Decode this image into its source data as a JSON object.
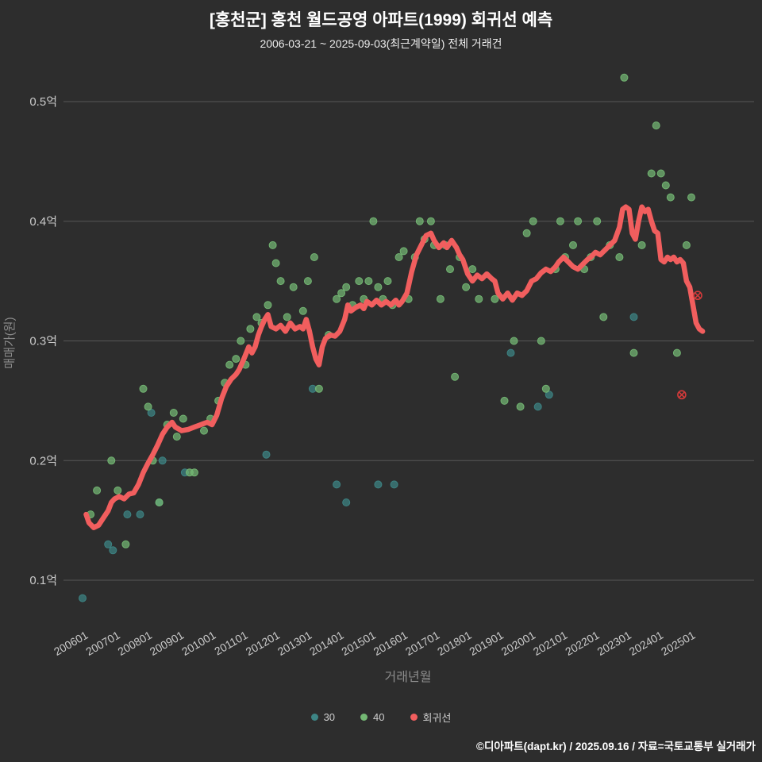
{
  "footer": "©디아파트(dapt.kr) / 2025.09.16 / 자료=국토교통부 실거래가",
  "colors": {
    "background": "#2d2d2d",
    "grid": "#565656",
    "tick_label": "#c9c9c9",
    "axis_title": "#8c8c8c",
    "title": "#ffffff",
    "subtitle": "#ededed",
    "legend_text": "#cfcfcf",
    "footer_text": "#ffffff"
  },
  "chart_data": {
    "type": "scatter",
    "title": "[홍천군] 홍천 월드공영 아파트(1999) 회귀선 예측",
    "subtitle": "2006-03-21 ~ 2025-09-03(최근계약일) 전체 거래건",
    "xlabel": "거래년월",
    "ylabel": "매매가(원)",
    "xlim": [
      2005.5,
      2027.1
    ],
    "ylim": [
      0.06,
      0.54
    ],
    "grid": "horizontal",
    "legend_position": "bottom-center",
    "yticks": [
      {
        "v": 0.1,
        "label": "0.1억"
      },
      {
        "v": 0.2,
        "label": "0.2억"
      },
      {
        "v": 0.3,
        "label": "0.3억"
      },
      {
        "v": 0.4,
        "label": "0.4억"
      },
      {
        "v": 0.5,
        "label": "0.5억"
      }
    ],
    "xticks": [
      {
        "v": 2006,
        "label": "200601"
      },
      {
        "v": 2007,
        "label": "200701"
      },
      {
        "v": 2008,
        "label": "200801"
      },
      {
        "v": 2009,
        "label": "200901"
      },
      {
        "v": 2010,
        "label": "201001"
      },
      {
        "v": 2011,
        "label": "201101"
      },
      {
        "v": 2012,
        "label": "201201"
      },
      {
        "v": 2013,
        "label": "201301"
      },
      {
        "v": 2014,
        "label": "201401"
      },
      {
        "v": 2015,
        "label": "201501"
      },
      {
        "v": 2016,
        "label": "201601"
      },
      {
        "v": 2017,
        "label": "201701"
      },
      {
        "v": 2018,
        "label": "201801"
      },
      {
        "v": 2019,
        "label": "201901"
      },
      {
        "v": 2020,
        "label": "202001"
      },
      {
        "v": 2021,
        "label": "202101"
      },
      {
        "v": 2022,
        "label": "202201"
      },
      {
        "v": 2023,
        "label": "202301"
      },
      {
        "v": 2024,
        "label": "202401"
      },
      {
        "v": 2025,
        "label": "202501"
      }
    ],
    "series": [
      {
        "name": "30",
        "type": "scatter",
        "color": "#3d8585",
        "points": [
          [
            2006.1,
            0.085
          ],
          [
            2006.9,
            0.13
          ],
          [
            2007.05,
            0.125
          ],
          [
            2007.5,
            0.155
          ],
          [
            2007.9,
            0.155
          ],
          [
            2008.25,
            0.24
          ],
          [
            2008.5,
            0.165
          ],
          [
            2008.6,
            0.2
          ],
          [
            2009.3,
            0.19
          ],
          [
            2011.85,
            0.205
          ],
          [
            2013.3,
            0.26
          ],
          [
            2014.05,
            0.18
          ],
          [
            2014.35,
            0.165
          ],
          [
            2015.35,
            0.18
          ],
          [
            2015.85,
            0.18
          ],
          [
            2019.5,
            0.29
          ],
          [
            2020.35,
            0.245
          ],
          [
            2020.7,
            0.255
          ],
          [
            2023.35,
            0.32
          ]
        ]
      },
      {
        "name": "40",
        "type": "scatter",
        "color": "#74b874",
        "points": [
          [
            2006.35,
            0.155
          ],
          [
            2006.55,
            0.175
          ],
          [
            2007.0,
            0.2
          ],
          [
            2007.2,
            0.175
          ],
          [
            2007.45,
            0.13
          ],
          [
            2008.0,
            0.26
          ],
          [
            2008.15,
            0.245
          ],
          [
            2008.3,
            0.2
          ],
          [
            2008.5,
            0.165
          ],
          [
            2008.75,
            0.23
          ],
          [
            2008.95,
            0.24
          ],
          [
            2009.05,
            0.22
          ],
          [
            2009.25,
            0.235
          ],
          [
            2009.45,
            0.19
          ],
          [
            2009.6,
            0.19
          ],
          [
            2009.9,
            0.225
          ],
          [
            2010.1,
            0.235
          ],
          [
            2010.35,
            0.25
          ],
          [
            2010.55,
            0.265
          ],
          [
            2010.7,
            0.28
          ],
          [
            2010.9,
            0.285
          ],
          [
            2011.05,
            0.3
          ],
          [
            2011.2,
            0.28
          ],
          [
            2011.35,
            0.31
          ],
          [
            2011.55,
            0.32
          ],
          [
            2011.7,
            0.315
          ],
          [
            2011.9,
            0.33
          ],
          [
            2012.05,
            0.38
          ],
          [
            2012.15,
            0.365
          ],
          [
            2012.3,
            0.35
          ],
          [
            2012.5,
            0.32
          ],
          [
            2012.7,
            0.345
          ],
          [
            2013.0,
            0.325
          ],
          [
            2013.15,
            0.35
          ],
          [
            2013.35,
            0.37
          ],
          [
            2013.5,
            0.26
          ],
          [
            2013.8,
            0.305
          ],
          [
            2014.05,
            0.335
          ],
          [
            2014.2,
            0.34
          ],
          [
            2014.35,
            0.345
          ],
          [
            2014.55,
            0.33
          ],
          [
            2014.75,
            0.35
          ],
          [
            2014.9,
            0.335
          ],
          [
            2015.05,
            0.35
          ],
          [
            2015.2,
            0.4
          ],
          [
            2015.35,
            0.345
          ],
          [
            2015.5,
            0.335
          ],
          [
            2015.65,
            0.35
          ],
          [
            2015.8,
            0.33
          ],
          [
            2016.0,
            0.37
          ],
          [
            2016.15,
            0.375
          ],
          [
            2016.3,
            0.335
          ],
          [
            2016.5,
            0.37
          ],
          [
            2016.65,
            0.4
          ],
          [
            2016.8,
            0.385
          ],
          [
            2017.0,
            0.4
          ],
          [
            2017.1,
            0.38
          ],
          [
            2017.3,
            0.335
          ],
          [
            2017.45,
            0.38
          ],
          [
            2017.6,
            0.36
          ],
          [
            2017.75,
            0.27
          ],
          [
            2017.9,
            0.37
          ],
          [
            2018.1,
            0.345
          ],
          [
            2018.3,
            0.36
          ],
          [
            2018.5,
            0.335
          ],
          [
            2019.0,
            0.335
          ],
          [
            2019.3,
            0.25
          ],
          [
            2019.6,
            0.3
          ],
          [
            2019.8,
            0.245
          ],
          [
            2020.0,
            0.39
          ],
          [
            2020.2,
            0.4
          ],
          [
            2020.45,
            0.3
          ],
          [
            2020.6,
            0.26
          ],
          [
            2020.9,
            0.36
          ],
          [
            2021.05,
            0.4
          ],
          [
            2021.2,
            0.37
          ],
          [
            2021.45,
            0.38
          ],
          [
            2021.6,
            0.4
          ],
          [
            2021.8,
            0.36
          ],
          [
            2022.0,
            0.37
          ],
          [
            2022.2,
            0.4
          ],
          [
            2022.4,
            0.32
          ],
          [
            2022.6,
            0.38
          ],
          [
            2022.9,
            0.37
          ],
          [
            2023.05,
            0.52
          ],
          [
            2023.35,
            0.29
          ],
          [
            2023.6,
            0.38
          ],
          [
            2023.9,
            0.44
          ],
          [
            2024.05,
            0.48
          ],
          [
            2024.2,
            0.44
          ],
          [
            2024.35,
            0.43
          ],
          [
            2024.5,
            0.42
          ],
          [
            2024.7,
            0.29
          ],
          [
            2025.0,
            0.38
          ],
          [
            2025.15,
            0.42
          ]
        ]
      },
      {
        "name": "회귀선",
        "type": "line",
        "color": "#f15e5e",
        "points": [
          [
            2006.21,
            0.155
          ],
          [
            2006.3,
            0.148
          ],
          [
            2006.45,
            0.144
          ],
          [
            2006.6,
            0.146
          ],
          [
            2006.75,
            0.152
          ],
          [
            2006.9,
            0.158
          ],
          [
            2007.0,
            0.165
          ],
          [
            2007.1,
            0.168
          ],
          [
            2007.25,
            0.17
          ],
          [
            2007.4,
            0.168
          ],
          [
            2007.55,
            0.172
          ],
          [
            2007.7,
            0.173
          ],
          [
            2007.85,
            0.18
          ],
          [
            2008.0,
            0.19
          ],
          [
            2008.15,
            0.198
          ],
          [
            2008.3,
            0.205
          ],
          [
            2008.45,
            0.213
          ],
          [
            2008.6,
            0.222
          ],
          [
            2008.75,
            0.228
          ],
          [
            2008.9,
            0.232
          ],
          [
            2009.0,
            0.228
          ],
          [
            2009.2,
            0.225
          ],
          [
            2009.4,
            0.226
          ],
          [
            2009.6,
            0.228
          ],
          [
            2009.8,
            0.23
          ],
          [
            2010.0,
            0.232
          ],
          [
            2010.15,
            0.23
          ],
          [
            2010.3,
            0.238
          ],
          [
            2010.45,
            0.252
          ],
          [
            2010.6,
            0.262
          ],
          [
            2010.75,
            0.268
          ],
          [
            2010.9,
            0.272
          ],
          [
            2011.0,
            0.276
          ],
          [
            2011.15,
            0.285
          ],
          [
            2011.3,
            0.295
          ],
          [
            2011.4,
            0.29
          ],
          [
            2011.5,
            0.295
          ],
          [
            2011.6,
            0.305
          ],
          [
            2011.7,
            0.312
          ],
          [
            2011.8,
            0.318
          ],
          [
            2011.9,
            0.322
          ],
          [
            2012.0,
            0.312
          ],
          [
            2012.15,
            0.31
          ],
          [
            2012.3,
            0.313
          ],
          [
            2012.45,
            0.308
          ],
          [
            2012.6,
            0.315
          ],
          [
            2012.75,
            0.31
          ],
          [
            2012.9,
            0.312
          ],
          [
            2013.0,
            0.31
          ],
          [
            2013.1,
            0.318
          ],
          [
            2013.2,
            0.308
          ],
          [
            2013.3,
            0.295
          ],
          [
            2013.4,
            0.285
          ],
          [
            2013.5,
            0.28
          ],
          [
            2013.6,
            0.295
          ],
          [
            2013.7,
            0.302
          ],
          [
            2013.85,
            0.305
          ],
          [
            2014.0,
            0.304
          ],
          [
            2014.15,
            0.308
          ],
          [
            2014.3,
            0.318
          ],
          [
            2014.4,
            0.33
          ],
          [
            2014.5,
            0.325
          ],
          [
            2014.65,
            0.328
          ],
          [
            2014.8,
            0.33
          ],
          [
            2014.9,
            0.327
          ],
          [
            2015.0,
            0.333
          ],
          [
            2015.15,
            0.33
          ],
          [
            2015.3,
            0.334
          ],
          [
            2015.45,
            0.33
          ],
          [
            2015.6,
            0.333
          ],
          [
            2015.75,
            0.33
          ],
          [
            2015.9,
            0.334
          ],
          [
            2016.0,
            0.33
          ],
          [
            2016.1,
            0.333
          ],
          [
            2016.25,
            0.34
          ],
          [
            2016.4,
            0.358
          ],
          [
            2016.55,
            0.372
          ],
          [
            2016.7,
            0.38
          ],
          [
            2016.85,
            0.388
          ],
          [
            2017.0,
            0.39
          ],
          [
            2017.1,
            0.384
          ],
          [
            2017.25,
            0.378
          ],
          [
            2017.4,
            0.382
          ],
          [
            2017.5,
            0.378
          ],
          [
            2017.65,
            0.384
          ],
          [
            2017.8,
            0.378
          ],
          [
            2017.9,
            0.372
          ],
          [
            2018.0,
            0.368
          ],
          [
            2018.15,
            0.356
          ],
          [
            2018.3,
            0.35
          ],
          [
            2018.45,
            0.355
          ],
          [
            2018.6,
            0.352
          ],
          [
            2018.75,
            0.356
          ],
          [
            2018.9,
            0.352
          ],
          [
            2019.0,
            0.35
          ],
          [
            2019.1,
            0.34
          ],
          [
            2019.25,
            0.335
          ],
          [
            2019.4,
            0.34
          ],
          [
            2019.55,
            0.334
          ],
          [
            2019.7,
            0.34
          ],
          [
            2019.85,
            0.338
          ],
          [
            2020.0,
            0.342
          ],
          [
            2020.15,
            0.35
          ],
          [
            2020.3,
            0.352
          ],
          [
            2020.45,
            0.357
          ],
          [
            2020.6,
            0.36
          ],
          [
            2020.75,
            0.358
          ],
          [
            2020.9,
            0.362
          ],
          [
            2021.0,
            0.366
          ],
          [
            2021.15,
            0.37
          ],
          [
            2021.3,
            0.366
          ],
          [
            2021.45,
            0.362
          ],
          [
            2021.6,
            0.36
          ],
          [
            2021.75,
            0.364
          ],
          [
            2021.9,
            0.368
          ],
          [
            2022.0,
            0.37
          ],
          [
            2022.15,
            0.374
          ],
          [
            2022.3,
            0.372
          ],
          [
            2022.45,
            0.376
          ],
          [
            2022.6,
            0.38
          ],
          [
            2022.75,
            0.384
          ],
          [
            2022.9,
            0.395
          ],
          [
            2023.0,
            0.41
          ],
          [
            2023.1,
            0.412
          ],
          [
            2023.2,
            0.41
          ],
          [
            2023.3,
            0.39
          ],
          [
            2023.4,
            0.385
          ],
          [
            2023.5,
            0.4
          ],
          [
            2023.6,
            0.412
          ],
          [
            2023.7,
            0.408
          ],
          [
            2023.8,
            0.41
          ],
          [
            2023.9,
            0.4
          ],
          [
            2024.0,
            0.392
          ],
          [
            2024.1,
            0.39
          ],
          [
            2024.2,
            0.368
          ],
          [
            2024.3,
            0.366
          ],
          [
            2024.4,
            0.37
          ],
          [
            2024.5,
            0.368
          ],
          [
            2024.6,
            0.37
          ],
          [
            2024.7,
            0.366
          ],
          [
            2024.8,
            0.368
          ],
          [
            2024.9,
            0.365
          ],
          [
            2025.0,
            0.35
          ],
          [
            2025.1,
            0.345
          ],
          [
            2025.2,
            0.33
          ],
          [
            2025.3,
            0.315
          ],
          [
            2025.4,
            0.31
          ],
          [
            2025.5,
            0.308
          ]
        ]
      }
    ],
    "outliers": {
      "name": "outlier-x-markers",
      "color": "#d23a3a",
      "points": [
        [
          2024.85,
          0.255
        ],
        [
          2025.35,
          0.338
        ]
      ]
    }
  }
}
